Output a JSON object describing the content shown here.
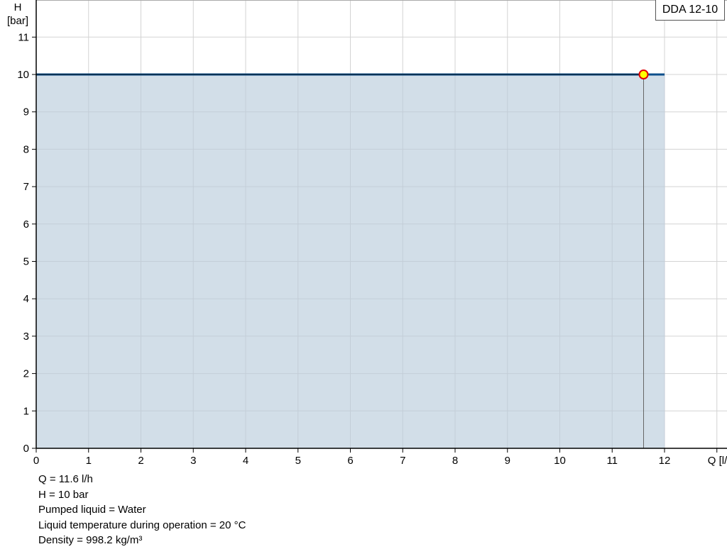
{
  "chart_data": {
    "type": "area",
    "title": "",
    "legend": "DDA 12-10",
    "legend_position": "top-right",
    "xlabel": "Q [l/h]",
    "ylabel_line1": "H",
    "ylabel_line2": "[bar]",
    "xlim": [
      0,
      13
    ],
    "ylim": [
      0,
      11.9
    ],
    "x_ticks": [
      0,
      1,
      2,
      3,
      4,
      5,
      6,
      7,
      8,
      9,
      10,
      11,
      12
    ],
    "y_ticks": [
      0,
      1,
      2,
      3,
      4,
      5,
      6,
      7,
      8,
      9,
      10,
      11
    ],
    "grid": true,
    "series": [
      {
        "x": [
          0,
          12
        ],
        "y": [
          10,
          10
        ]
      }
    ],
    "operating_point": {
      "x": 11.6,
      "y": 10
    },
    "colors": {
      "fill": "#d0dce7",
      "line": "#0d4f8b",
      "point_fill": "#ffff00",
      "point_stroke": "#e00000",
      "grid": "#d3d3d3"
    }
  },
  "info": [
    "Q = 11.6 l/h",
    "H = 10 bar",
    "Pumped liquid = Water",
    "Liquid temperature during operation = 20 °C",
    "Density = 998.2 kg/m³"
  ]
}
